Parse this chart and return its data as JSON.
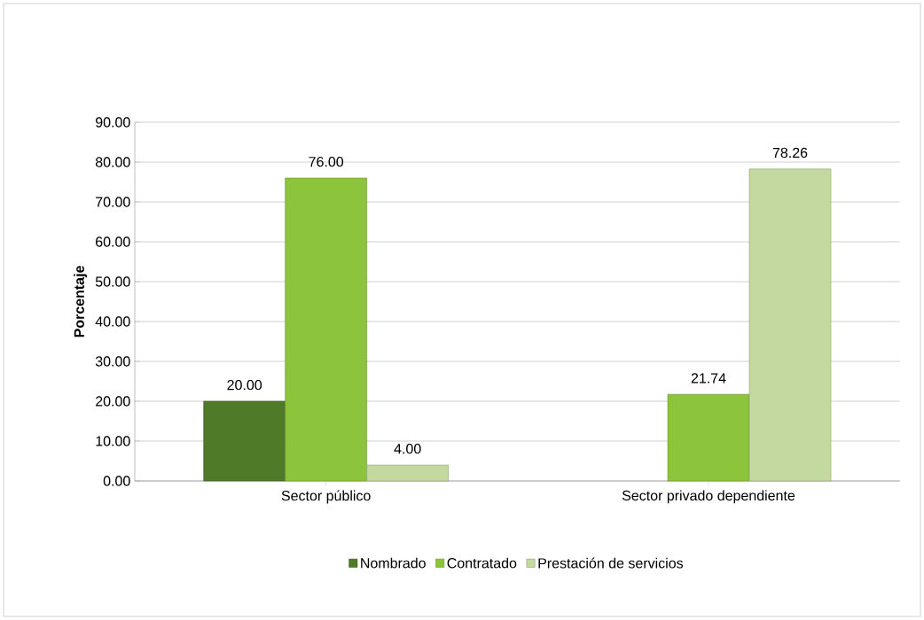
{
  "chart_data": {
    "type": "bar",
    "ylabel": "Porcentaje",
    "categories": [
      "Sector público",
      "Sector privado dependiente"
    ],
    "series": [
      {
        "name": "Nombrado",
        "color": "#4f7a28",
        "values": [
          20.0,
          null
        ],
        "value_labels": [
          "20.00",
          null
        ]
      },
      {
        "name": "Contratado",
        "color": "#8cc43c",
        "values": [
          76.0,
          21.74
        ],
        "value_labels": [
          "76.00",
          "21.74"
        ]
      },
      {
        "name": "Prestación de servicios",
        "color": "#c3d9a0",
        "values": [
          4.0,
          78.26
        ],
        "value_labels": [
          "4.00",
          "78.26"
        ]
      }
    ],
    "ylim": [
      0,
      90
    ],
    "yticks": [
      {
        "value": 0,
        "label": "0.00"
      },
      {
        "value": 10,
        "label": "10.00"
      },
      {
        "value": 20,
        "label": "20.00"
      },
      {
        "value": 30,
        "label": "30.00"
      },
      {
        "value": 40,
        "label": "40.00"
      },
      {
        "value": 50,
        "label": "50.00"
      },
      {
        "value": 60,
        "label": "60.00"
      },
      {
        "value": 70,
        "label": "70.00"
      },
      {
        "value": 80,
        "label": "80.00"
      },
      {
        "value": 90,
        "label": "90.00"
      }
    ],
    "grid": "y",
    "legend": "bottom"
  }
}
